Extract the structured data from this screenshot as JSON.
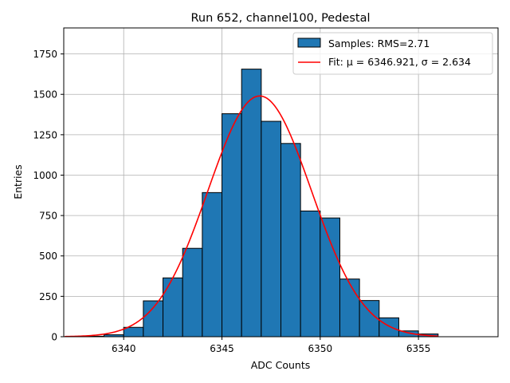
{
  "chart_data": {
    "type": "bar",
    "title": "Run 652, channel100, Pedestal",
    "xlabel": "ADC Counts",
    "ylabel": "Entries",
    "xlim": [
      6336.95,
      6359.05
    ],
    "ylim": [
      0,
      1911
    ],
    "grid": true,
    "legend_position": "top-right",
    "xticks": [
      6340,
      6345,
      6350,
      6355
    ],
    "yticks": [
      0,
      250,
      500,
      750,
      1000,
      1250,
      1500,
      1750
    ],
    "histogram": {
      "name": "Samples: RMS=2.71",
      "color": "#1f77b4",
      "edgecolor": "#000000",
      "bin_edges": [
        6338,
        6339,
        6340,
        6341,
        6342,
        6343,
        6344,
        6345,
        6346,
        6347,
        6348,
        6349,
        6350,
        6351,
        6352,
        6353,
        6354,
        6355,
        6356
      ],
      "counts": [
        3,
        12,
        58,
        222,
        364,
        547,
        892,
        1380,
        1656,
        1333,
        1196,
        778,
        735,
        357,
        224,
        117,
        36,
        17
      ]
    },
    "fit": {
      "name": "Fit: μ = 6346.921, σ = 2.634",
      "color": "#ff0000",
      "mu": 6346.921,
      "sigma": 2.634,
      "amplitude": 1490,
      "x_range": [
        6337,
        6356
      ]
    }
  }
}
